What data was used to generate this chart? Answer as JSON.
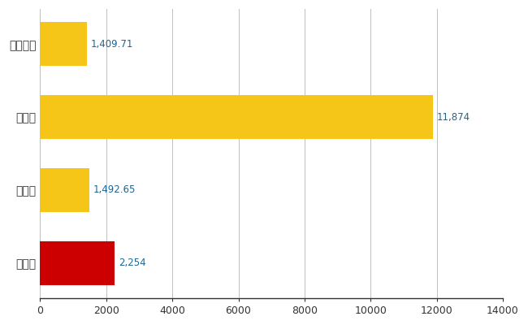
{
  "categories": [
    "市原市",
    "県平均",
    "県最大",
    "全国平均"
  ],
  "values": [
    2254,
    1492.65,
    11874,
    1409.71
  ],
  "colors": [
    "#CC0000",
    "#F5C518",
    "#F5C518",
    "#F5C518"
  ],
  "labels": [
    "2,254",
    "1,492.65",
    "11,874",
    "1,409.71"
  ],
  "xlim": [
    0,
    14000
  ],
  "xticks": [
    0,
    2000,
    4000,
    6000,
    8000,
    10000,
    12000,
    14000
  ],
  "background_color": "#ffffff",
  "grid_color": "#c0c0c0",
  "bar_height": 0.6,
  "label_color": "#1a6696",
  "label_fontsize": 8.5,
  "ytick_fontsize": 10
}
